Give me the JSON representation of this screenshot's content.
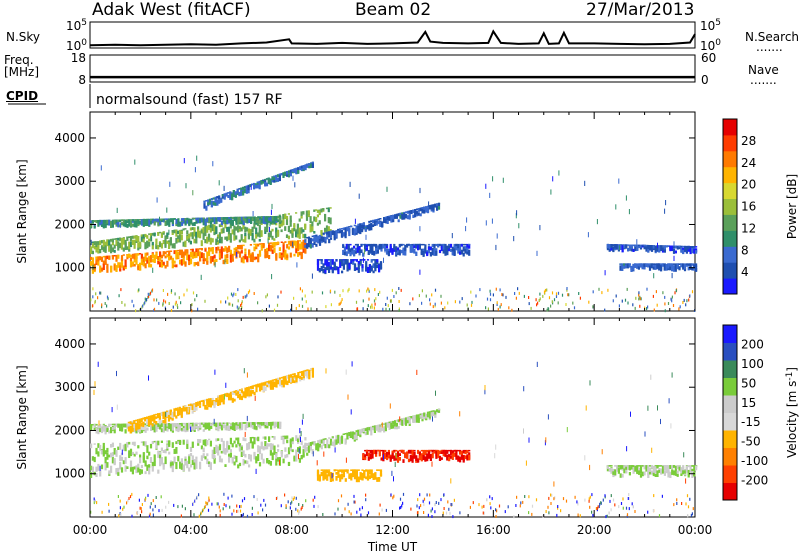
{
  "header": {
    "station": "Adak West (fitACF)",
    "beam": "Beam 02",
    "date": "27/Mar/2013"
  },
  "side_labels": {
    "nsky": "N.Sky",
    "nsearch": "N.Search",
    "freq": "Freq.",
    "freq_unit": "[MHz]",
    "nave": "Nave",
    "cpid": "CPID",
    "dots": "......."
  },
  "cpid_text": "normalsound (fast) 157 RF",
  "colors": {
    "noise_line": "#000000",
    "frame": "#000000"
  },
  "chart_data": [
    {
      "type": "line",
      "name": "noise-panel",
      "left_axis_label": "N.Sky",
      "right_axis_label": "N.Search",
      "left_ticks": [
        "10^5",
        "10^0"
      ],
      "right_ticks": [
        "10^5",
        "10^0"
      ],
      "x_hours": [
        0,
        1,
        2,
        3,
        4,
        5,
        6,
        7,
        7.9,
        8,
        9,
        10,
        11,
        12,
        13,
        13.3,
        13.5,
        14,
        15,
        15.8,
        16,
        16.3,
        17,
        17.8,
        18,
        18.2,
        18.6,
        18.8,
        19,
        20,
        21,
        22,
        23,
        23.8,
        24
      ],
      "y_log10": [
        0.6,
        0.7,
        0.6,
        0.7,
        0.8,
        0.7,
        1.0,
        1.2,
        1.9,
        1.0,
        0.9,
        1.1,
        0.9,
        1.0,
        1.2,
        3.5,
        1.4,
        1.1,
        1.0,
        1.1,
        3.6,
        1.1,
        0.9,
        1.0,
        3.2,
        0.9,
        1.0,
        3.3,
        1.0,
        1.0,
        0.9,
        0.8,
        0.9,
        1.2,
        3.0
      ]
    },
    {
      "type": "line",
      "name": "frequency-panel",
      "left_axis_label": "Freq. [MHz]",
      "right_axis_label": "Nave",
      "left_ticks": [
        "18",
        "8"
      ],
      "right_ticks": [
        "60",
        "0"
      ],
      "x_hours": [
        0,
        24
      ],
      "y": [
        9.8,
        9.8
      ]
    },
    {
      "type": "heatmap",
      "name": "power",
      "ylabel": "Slant Range [km]",
      "y_ticks": [
        1000,
        2000,
        3000,
        4000
      ],
      "ylim": [
        0,
        4600
      ],
      "xlim_hours": [
        0,
        24
      ],
      "colorbar_label": "Power [dB]",
      "colorbar_ticks": [
        4,
        8,
        12,
        16,
        20,
        24,
        28
      ],
      "colorbar_range": [
        0,
        32
      ],
      "colorbar_colors": [
        "#1a1aff",
        "#1f4fb0",
        "#3a6ad0",
        "#2f8f6a",
        "#5aa05a",
        "#9bbf3a",
        "#d8d830",
        "#ffb400",
        "#ff7a00",
        "#ff3c00",
        "#e60000"
      ],
      "echo_bands": [
        {
          "label": "near-range E region",
          "t0": 0,
          "t1": 8.5,
          "r0_start": 850,
          "r0_end": 1200,
          "r1_start": 1250,
          "r1_end": 1650,
          "value": 24
        },
        {
          "label": "mid band",
          "t0": 0,
          "t1": 9.5,
          "r0_start": 1300,
          "r0_end": 1700,
          "r1_start": 1600,
          "r1_end": 2400,
          "value": 14
        },
        {
          "label": "upper band",
          "t0": 0,
          "t1": 7.5,
          "r0_start": 1900,
          "r0_end": 2000,
          "r1_start": 2100,
          "r1_end": 2200,
          "value": 10
        },
        {
          "label": "rising trace",
          "t0": 4.5,
          "t1": 8.8,
          "r0_start": 2300,
          "r0_end": 3300,
          "r1_start": 2550,
          "r1_end": 3450,
          "value": 8
        },
        {
          "label": "F-region arc",
          "t0": 8.5,
          "t1": 13.8,
          "r0_start": 1400,
          "r0_end": 2300,
          "r1_start": 1700,
          "r1_end": 2500,
          "value": 6
        },
        {
          "label": "blob 1",
          "t0": 10,
          "t1": 15,
          "r0_start": 1250,
          "r0_end": 1250,
          "r1_start": 1550,
          "r1_end": 1550,
          "value": 5
        },
        {
          "label": "blob 2",
          "t0": 9,
          "t1": 11.5,
          "r0_start": 850,
          "r0_end": 850,
          "r1_start": 1200,
          "r1_end": 1200,
          "value": 4
        },
        {
          "label": "evening band",
          "t0": 21,
          "t1": 24,
          "r0_start": 900,
          "r0_end": 900,
          "r1_start": 1100,
          "r1_end": 1100,
          "value": 6
        },
        {
          "label": "evening band 2",
          "t0": 20.5,
          "t1": 24,
          "r0_start": 1350,
          "r0_end": 1300,
          "r1_start": 1550,
          "r1_end": 1500,
          "value": 5
        }
      ],
      "ground_scatter_floor_km": [
        0,
        600
      ]
    },
    {
      "type": "heatmap",
      "name": "velocity",
      "ylabel": "Slant Range [km]",
      "y_ticks": [
        1000,
        2000,
        3000,
        4000
      ],
      "ylim": [
        0,
        4600
      ],
      "xlim_hours": [
        0,
        24
      ],
      "colorbar_label": "Velocity [m s^-1]",
      "colorbar_ticks": [
        200,
        100,
        50,
        15,
        -15,
        -50,
        -100,
        -200
      ],
      "colorbar_colors": [
        "#1a1aff",
        "#2a4fc0",
        "#3a8a5a",
        "#7acc3a",
        "#cccccc",
        "#d8d8d8",
        "#ffb400",
        "#ff8000",
        "#ff4000",
        "#e60000"
      ],
      "echo_bands": [
        {
          "label": "ground scatter",
          "t0": 0,
          "t1": 8.5,
          "r0_start": 900,
          "r0_end": 1200,
          "r1_start": 1700,
          "r1_end": 1900,
          "value": 0
        },
        {
          "label": "upper grey band",
          "t0": 0,
          "t1": 7.5,
          "r0_start": 1900,
          "r0_end": 2000,
          "r1_start": 2150,
          "r1_end": 2200,
          "value": 0
        },
        {
          "label": "orange trace",
          "t0": 1.5,
          "t1": 8.8,
          "r0_start": 1900,
          "r0_end": 3200,
          "r1_start": 2200,
          "r1_end": 3450,
          "value": -60
        },
        {
          "label": "F-region arc",
          "t0": 8.5,
          "t1": 13.8,
          "r0_start": 1400,
          "r0_end": 2300,
          "r1_start": 1700,
          "r1_end": 2500,
          "value": 0
        },
        {
          "label": "red blob",
          "t0": 10.8,
          "t1": 15,
          "r0_start": 1250,
          "r0_end": 1250,
          "r1_start": 1550,
          "r1_end": 1550,
          "value": -200
        },
        {
          "label": "orange blob",
          "t0": 9,
          "t1": 11.5,
          "r0_start": 800,
          "r0_end": 800,
          "r1_start": 1100,
          "r1_end": 1100,
          "value": -80
        },
        {
          "label": "evening band",
          "t0": 20.5,
          "t1": 24,
          "r0_start": 900,
          "r0_end": 900,
          "r1_start": 1200,
          "r1_end": 1200,
          "value": 0
        }
      ]
    }
  ],
  "x_axis": {
    "label": "Time UT",
    "ticks": [
      "00:00",
      "04:00",
      "08:00",
      "12:00",
      "16:00",
      "20:00",
      "00:00"
    ]
  }
}
